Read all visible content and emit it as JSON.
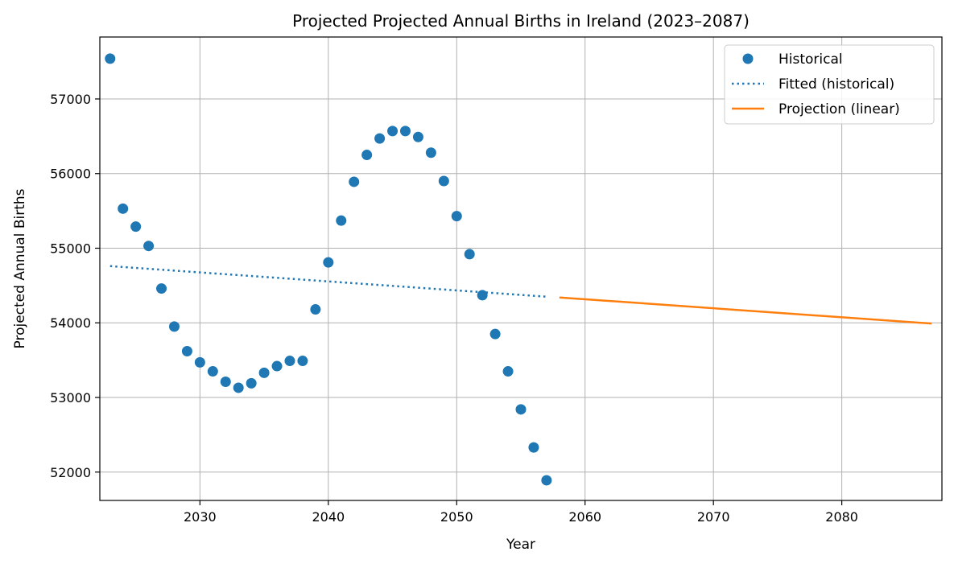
{
  "chart_data": {
    "type": "line",
    "title": "Projected Projected Annual Births in Ireland (2023–2087)",
    "xlabel": "Year",
    "ylabel": "Projected Annual Births",
    "xlim": [
      2022.2,
      2087.8
    ],
    "ylim": [
      51620,
      57830
    ],
    "x_ticks": [
      2030,
      2040,
      2050,
      2060,
      2070,
      2080
    ],
    "y_ticks": [
      52000,
      53000,
      54000,
      55000,
      56000,
      57000
    ],
    "grid": true,
    "legend_position": "top-right",
    "series": [
      {
        "name": "Historical",
        "style": "markers",
        "color": "#1f77b4",
        "x": [
          2023,
          2024,
          2025,
          2026,
          2027,
          2028,
          2029,
          2030,
          2031,
          2032,
          2033,
          2034,
          2035,
          2036,
          2037,
          2038,
          2039,
          2040,
          2041,
          2042,
          2043,
          2044,
          2045,
          2046,
          2047,
          2048,
          2049,
          2050,
          2051,
          2052,
          2053,
          2054,
          2055,
          2056,
          2057
        ],
        "values": [
          57540,
          55530,
          55290,
          55030,
          54460,
          53950,
          53620,
          53470,
          53350,
          53210,
          53130,
          53190,
          53330,
          53420,
          53490,
          53490,
          54180,
          54810,
          55370,
          55890,
          56250,
          56470,
          56570,
          56570,
          56490,
          56280,
          55900,
          55430,
          54920,
          54370,
          53850,
          53350,
          52840,
          52330,
          51890
        ]
      },
      {
        "name": "Fitted (historical)",
        "style": "dotted",
        "color": "#1f77b4",
        "x": [
          2023,
          2057
        ],
        "values": [
          54760,
          54350
        ]
      },
      {
        "name": "Projection (linear)",
        "style": "solid",
        "color": "#ff7f0e",
        "x": [
          2058,
          2087
        ],
        "values": [
          54340,
          53990
        ]
      }
    ]
  }
}
